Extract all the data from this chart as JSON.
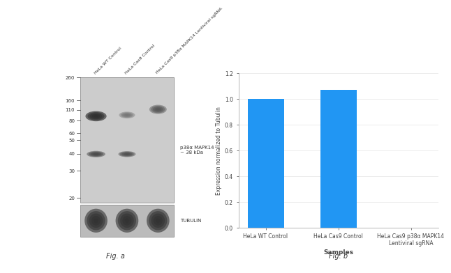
{
  "bar_categories": [
    "HeLa WT Control",
    "HeLa Cas9 Control",
    "HeLa Cas9 p38α MAPK14\nLentiviral sgRNA"
  ],
  "bar_values": [
    1.0,
    1.07,
    0.0
  ],
  "bar_color": "#2196F3",
  "ylabel": "Expression normalized to Tubulin",
  "xlabel": "Samples",
  "ylim": [
    0,
    1.2
  ],
  "yticks": [
    0,
    0.2,
    0.4,
    0.6,
    0.8,
    1.0,
    1.2
  ],
  "fig_b_label": "Fig. b",
  "fig_a_label": "Fig. a",
  "wb_labels_left": [
    "260",
    "160",
    "110",
    "80",
    "60",
    "50",
    "40",
    "30",
    "20"
  ],
  "wb_label_p38": "p38α MAPK14\n~ 38 kDa",
  "wb_label_tubulin": "TUBULIN",
  "wb_col_labels": [
    "HeLa WT Control",
    "HeLa Cas9 Control",
    "HeLa Cas9 p38α MAPK14 Lentiviral sgRNA"
  ],
  "background_color": "#ffffff",
  "gel_bg_color": "#c8c8c8",
  "gel_edge_color": "#999999",
  "tubulin_strip_color": "#888888"
}
